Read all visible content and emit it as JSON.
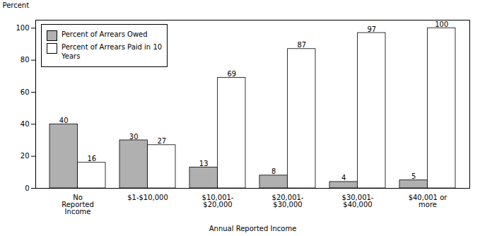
{
  "chart_data": {
    "type": "bar",
    "categories": [
      "No\nReported\nIncome",
      "$1-$10,000",
      "$10,001-\n$20,000",
      "$20,001-\n$30,000",
      "$30,001-\n$40,000",
      "$40,001 or\nmore"
    ],
    "series": [
      {
        "name": "Percent of Arrears Owed",
        "color": "#b0b0b0",
        "values": [
          40,
          30,
          13,
          8,
          4,
          5
        ]
      },
      {
        "name": "Percent of Arrears Paid in 10\nYears",
        "color": "#ffffff",
        "values": [
          16,
          27,
          69,
          87,
          97,
          100
        ]
      }
    ],
    "xlabel": "Annual Reported Income",
    "ylabel": "Percent",
    "ylim": [
      0,
      105
    ],
    "yticks": [
      0,
      20,
      40,
      60,
      80,
      100
    ],
    "grid": false,
    "legend": "upper left",
    "data_labels": true
  }
}
